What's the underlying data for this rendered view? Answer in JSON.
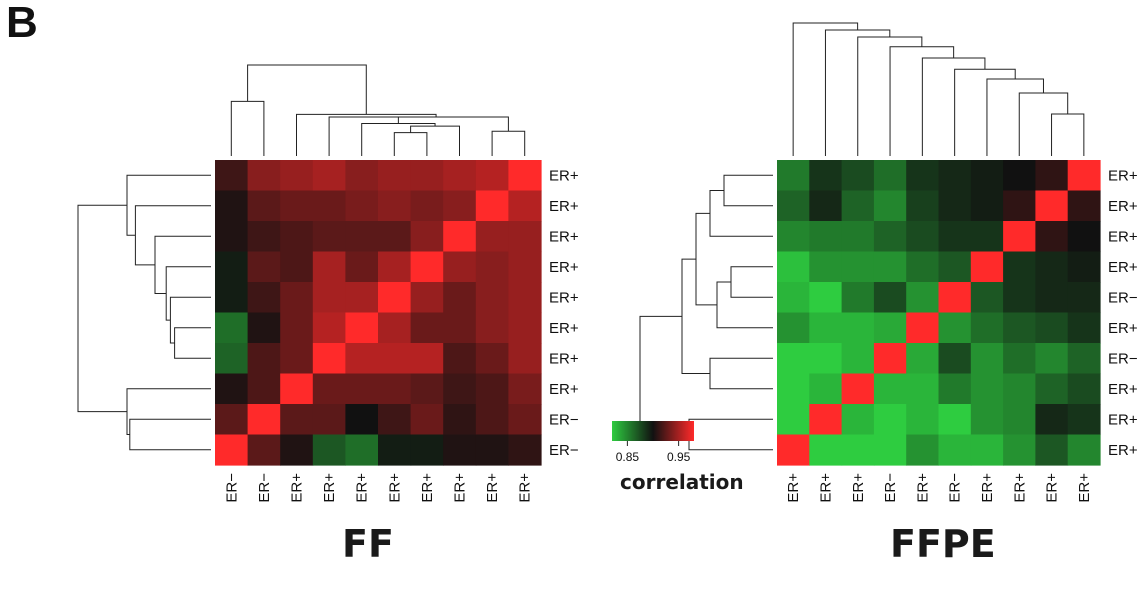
{
  "panel_label": "B",
  "chart_data": [
    {
      "type": "heatmap",
      "title": "FF",
      "row_labels": [
        "ER+",
        "ER+",
        "ER+",
        "ER+",
        "ER+",
        "ER+",
        "ER+",
        "ER+",
        "ER−",
        "ER−"
      ],
      "col_labels": [
        "ER−",
        "ER−",
        "ER+",
        "ER+",
        "ER+",
        "ER+",
        "ER+",
        "ER+",
        "ER+",
        "ER+"
      ],
      "values": [
        [
          0.915,
          0.94,
          0.945,
          0.95,
          0.94,
          0.945,
          0.945,
          0.95,
          0.955,
          1.0
        ],
        [
          0.905,
          0.925,
          0.93,
          0.93,
          0.935,
          0.94,
          0.935,
          0.94,
          1.0,
          0.955
        ],
        [
          0.905,
          0.915,
          0.92,
          0.925,
          0.925,
          0.925,
          0.94,
          1.0,
          0.945,
          0.945
        ],
        [
          0.895,
          0.925,
          0.92,
          0.95,
          0.93,
          0.95,
          1.0,
          0.945,
          0.94,
          0.945
        ],
        [
          0.895,
          0.915,
          0.93,
          0.95,
          0.95,
          1.0,
          0.945,
          0.93,
          0.94,
          0.945
        ],
        [
          0.86,
          0.905,
          0.93,
          0.955,
          1.0,
          0.95,
          0.93,
          0.93,
          0.94,
          0.945
        ],
        [
          0.865,
          0.92,
          0.93,
          1.0,
          0.955,
          0.955,
          0.955,
          0.92,
          0.93,
          0.945
        ],
        [
          0.905,
          0.92,
          1.0,
          0.93,
          0.93,
          0.93,
          0.925,
          0.915,
          0.92,
          0.935
        ],
        [
          0.925,
          1.0,
          0.925,
          0.925,
          0.9,
          0.915,
          0.93,
          0.91,
          0.92,
          0.93
        ],
        [
          1.0,
          0.925,
          0.905,
          0.87,
          0.86,
          0.895,
          0.895,
          0.905,
          0.905,
          0.91
        ]
      ],
      "scale_min": 0.82,
      "scale_mid": 0.9,
      "scale_max": 0.98
    },
    {
      "type": "heatmap",
      "title": "FFPE",
      "row_labels": [
        "ER+",
        "ER+",
        "ER+",
        "ER+",
        "ER−",
        "ER+",
        "ER−",
        "ER+",
        "ER+",
        "ER+"
      ],
      "col_labels": [
        "ER+",
        "ER+",
        "ER+",
        "ER−",
        "ER+",
        "ER−",
        "ER+",
        "ER+",
        "ER+",
        "ER+"
      ],
      "values": [
        [
          0.855,
          0.885,
          0.875,
          0.86,
          0.885,
          0.89,
          0.895,
          0.9,
          0.91,
          1.0
        ],
        [
          0.865,
          0.89,
          0.865,
          0.85,
          0.88,
          0.89,
          0.895,
          0.91,
          1.0,
          0.91
        ],
        [
          0.85,
          0.855,
          0.855,
          0.865,
          0.875,
          0.885,
          0.885,
          1.0,
          0.91,
          0.9
        ],
        [
          0.825,
          0.845,
          0.845,
          0.845,
          0.86,
          0.87,
          1.0,
          0.885,
          0.89,
          0.895
        ],
        [
          0.83,
          0.82,
          0.855,
          0.875,
          0.845,
          1.0,
          0.87,
          0.885,
          0.89,
          0.89
        ],
        [
          0.845,
          0.83,
          0.83,
          0.835,
          1.0,
          0.845,
          0.86,
          0.87,
          0.875,
          0.885
        ],
        [
          0.82,
          0.815,
          0.83,
          1.0,
          0.835,
          0.875,
          0.845,
          0.86,
          0.85,
          0.865
        ],
        [
          0.815,
          0.83,
          1.0,
          0.83,
          0.83,
          0.855,
          0.845,
          0.85,
          0.865,
          0.875
        ],
        [
          0.82,
          1.0,
          0.83,
          0.815,
          0.83,
          0.82,
          0.845,
          0.85,
          0.89,
          0.885
        ],
        [
          1.0,
          0.82,
          0.815,
          0.82,
          0.845,
          0.83,
          0.83,
          0.845,
          0.87,
          0.85
        ]
      ],
      "scale_min": 0.82,
      "scale_mid": 0.9,
      "scale_max": 0.98
    }
  ],
  "color_scale": {
    "low_color": "#2ecc40",
    "mid_color": "#111111",
    "high_color": "#ff2a2a",
    "ticks": [
      "0.85",
      "0.95"
    ],
    "tick_values": [
      0.85,
      0.95
    ],
    "min": 0.82,
    "max": 0.98,
    "label": "correlation"
  }
}
